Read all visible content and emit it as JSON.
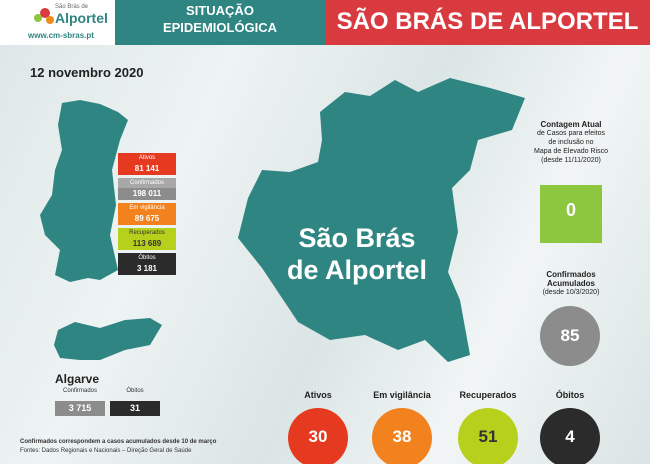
{
  "header": {
    "logo_small": "São Brás de",
    "logo_name": "Alportel",
    "url": "www.cm-sbras.pt",
    "title_lines": [
      "SITUAÇÃO",
      "EPIDEMIOLÓGICA"
    ],
    "banner": "SÃO BRÁS DE ALPORTEL"
  },
  "date": "12 novembro 2020",
  "portugal": [
    {
      "label": "Ativos",
      "value": "81 141"
    },
    {
      "label": "Confirmados",
      "value": "198 011"
    },
    {
      "label": "Em vigilância",
      "value": "89 675"
    },
    {
      "label": "Recuperados",
      "value": "113 689"
    },
    {
      "label": "Óbitos",
      "value": "3 181"
    }
  ],
  "algarve": {
    "title": "Algarve",
    "columns": [
      "Confirmados",
      "Óbitos"
    ],
    "values": [
      "3 715",
      "31"
    ]
  },
  "map_label": [
    "São Brás",
    "de Alportel"
  ],
  "risk": {
    "lines": [
      "Contagem Atual",
      "de Casos para efeitos",
      "de inclusão no",
      "Mapa de Elevado Risco",
      "(desde 11/11/2020)"
    ],
    "value": "0"
  },
  "accumulated": {
    "lines": [
      "Confirmados",
      "Acumulados",
      "(desde 10/3/2020)"
    ],
    "value": "85"
  },
  "local": [
    {
      "label": "Ativos",
      "value": "30"
    },
    {
      "label": "Em vigilância",
      "value": "38"
    },
    {
      "label": "Recuperados",
      "value": "51"
    },
    {
      "label": "Óbitos",
      "value": "4"
    }
  ],
  "footnotes": [
    "Confirmados correspondem a casos acumulados desde 10 de março",
    "Fontes: Dados Regionais e Nacionais – Direção Geral de Saúde"
  ]
}
